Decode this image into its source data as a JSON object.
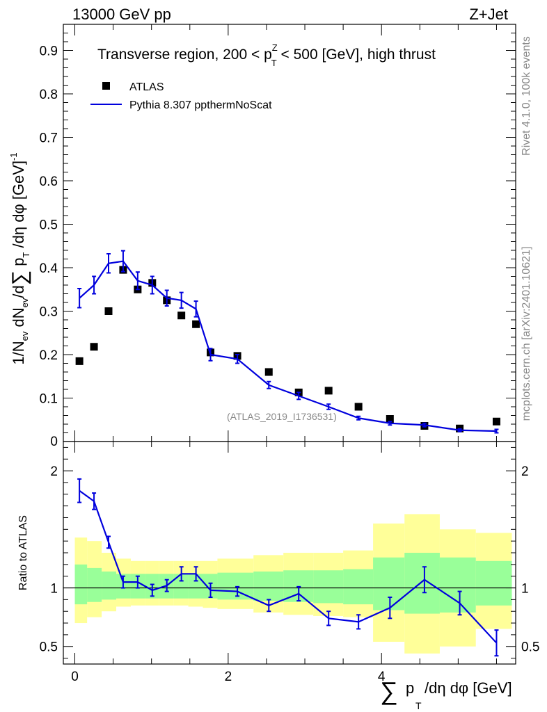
{
  "header": {
    "left": "13000 GeV pp",
    "right": "Z+Jet"
  },
  "side_labels": {
    "rivet": "Rivet 4.1.0,  100k events",
    "mcplots": "mcplots.cern.ch [arXiv:2401.10621]"
  },
  "chart_data": [
    {
      "type": "scatter",
      "title": "Transverse region, 200 < p_T^Z < 500 [GeV], high thrust",
      "title_parts": {
        "pre": "Transverse region, 200 < p",
        "sub": "T",
        "sup": "Z",
        "post": " < 500 [GeV], high thrust"
      },
      "ylabel": "1/N_ev dN_ev/d∑ p_T /dη dφ  [GeV]^-1",
      "watermark": "(ATLAS_2019_I1736531)",
      "xlim": [
        -0.15,
        5.75
      ],
      "ylim": [
        0,
        0.96
      ],
      "yticks": [
        0.1,
        0.2,
        0.3,
        0.4,
        0.5,
        0.6,
        0.7,
        0.8,
        0.9
      ],
      "ytick_labels": [
        "0.1",
        "0.2",
        "0.3",
        "0.4",
        "0.5",
        "0.6",
        "0.7",
        "0.8",
        "0.9"
      ],
      "ybottom_label": "0",
      "legend": [
        {
          "name": "ATLAS",
          "marker": "square",
          "color": "#000000"
        },
        {
          "name": "Pythia 8.307 pptherm NoScat",
          "label": "Pythia 8.307 ppthermNoScat",
          "marker": "line",
          "color": "#0000dd"
        }
      ],
      "series": [
        {
          "name": "ATLAS",
          "x": [
            0.06,
            0.25,
            0.44,
            0.63,
            0.82,
            1.01,
            1.2,
            1.39,
            1.58,
            1.77,
            2.12,
            2.53,
            2.92,
            3.31,
            3.7,
            4.11,
            4.56,
            5.02,
            5.5
          ],
          "y": [
            0.185,
            0.218,
            0.3,
            0.395,
            0.35,
            0.365,
            0.325,
            0.29,
            0.27,
            0.205,
            0.197,
            0.16,
            0.113,
            0.117,
            0.08,
            0.052,
            0.036,
            0.03,
            0.046
          ]
        },
        {
          "name": "Pythia 8.307 ppthermNoScat",
          "bins": [
            [
              0,
              0.16
            ],
            [
              0.16,
              0.35
            ],
            [
              0.35,
              0.54
            ],
            [
              0.54,
              0.73
            ],
            [
              0.73,
              0.92
            ],
            [
              0.92,
              1.1
            ],
            [
              1.1,
              1.29
            ],
            [
              1.29,
              1.48
            ],
            [
              1.48,
              1.67
            ],
            [
              1.67,
              1.86
            ],
            [
              1.86,
              2.33
            ],
            [
              2.33,
              2.72
            ],
            [
              2.72,
              3.11
            ],
            [
              3.11,
              3.5
            ],
            [
              3.5,
              3.89
            ],
            [
              3.89,
              4.3
            ],
            [
              4.3,
              4.76
            ],
            [
              4.76,
              5.23
            ],
            [
              5.23,
              5.7
            ]
          ],
          "x": [
            0.06,
            0.25,
            0.44,
            0.63,
            0.82,
            1.01,
            1.2,
            1.39,
            1.58,
            1.77,
            2.12,
            2.53,
            2.92,
            3.31,
            3.7,
            4.11,
            4.56,
            5.02,
            5.5
          ],
          "y": [
            0.33,
            0.36,
            0.41,
            0.415,
            0.37,
            0.36,
            0.33,
            0.325,
            0.305,
            0.2,
            0.19,
            0.13,
            0.105,
            0.08,
            0.054,
            0.042,
            0.038,
            0.026,
            0.024
          ],
          "err": [
            0.022,
            0.02,
            0.022,
            0.024,
            0.02,
            0.02,
            0.018,
            0.018,
            0.018,
            0.014,
            0.01,
            0.008,
            0.008,
            0.006,
            0.004,
            0.004,
            0.004,
            0.003,
            0.004
          ]
        }
      ]
    },
    {
      "type": "line",
      "ylabel": "Ratio to ATLAS",
      "xlabel": "∑ p_T /dη dφ [GeV]",
      "xlabel_parts": {
        "sum": "∑",
        "p": "p",
        "sub": "T",
        "rest": "/dη dφ [GeV]"
      },
      "xlim": [
        -0.15,
        5.75
      ],
      "ylim": [
        0.35,
        2.25
      ],
      "xticks": [
        0,
        2,
        4
      ],
      "xtick_labels": [
        "0",
        "2",
        "4"
      ],
      "yticks": [
        0.5,
        1,
        2
      ],
      "ytick_labels": [
        "0.5",
        "1",
        "2"
      ],
      "reference": 1,
      "bands": {
        "bins": [
          [
            0,
            0.16
          ],
          [
            0.16,
            0.35
          ],
          [
            0.35,
            0.54
          ],
          [
            0.54,
            0.73
          ],
          [
            0.73,
            0.92
          ],
          [
            0.92,
            1.1
          ],
          [
            1.1,
            1.29
          ],
          [
            1.29,
            1.48
          ],
          [
            1.48,
            1.67
          ],
          [
            1.67,
            1.86
          ],
          [
            1.86,
            2.33
          ],
          [
            2.33,
            2.72
          ],
          [
            2.72,
            3.11
          ],
          [
            3.11,
            3.5
          ],
          [
            3.5,
            3.89
          ],
          [
            3.89,
            4.3
          ],
          [
            4.3,
            4.76
          ],
          [
            4.76,
            5.23
          ],
          [
            5.23,
            5.7
          ]
        ],
        "inner_lo": [
          0.86,
          0.88,
          0.9,
          0.91,
          0.91,
          0.91,
          0.91,
          0.91,
          0.91,
          0.91,
          0.9,
          0.89,
          0.88,
          0.87,
          0.86,
          0.81,
          0.78,
          0.79,
          0.85
        ],
        "inner_hi": [
          1.2,
          1.17,
          1.14,
          1.12,
          1.12,
          1.12,
          1.12,
          1.12,
          1.12,
          1.12,
          1.13,
          1.14,
          1.15,
          1.15,
          1.16,
          1.26,
          1.3,
          1.26,
          1.23
        ],
        "outer_lo": [
          0.7,
          0.75,
          0.8,
          0.84,
          0.85,
          0.85,
          0.85,
          0.85,
          0.84,
          0.83,
          0.82,
          0.79,
          0.77,
          0.76,
          0.75,
          0.54,
          0.44,
          0.5,
          0.65
        ],
        "outer_hi": [
          1.43,
          1.4,
          1.3,
          1.25,
          1.23,
          1.23,
          1.23,
          1.23,
          1.23,
          1.23,
          1.25,
          1.28,
          1.3,
          1.3,
          1.32,
          1.55,
          1.63,
          1.5,
          1.47
        ]
      },
      "series": [
        {
          "name": "Pythia 8.307 ppthermNoScat / ATLAS",
          "x": [
            0.06,
            0.25,
            0.44,
            0.63,
            0.82,
            1.01,
            1.2,
            1.39,
            1.58,
            1.77,
            2.12,
            2.53,
            2.92,
            3.31,
            3.7,
            4.11,
            4.56,
            5.02,
            5.5
          ],
          "y": [
            1.83,
            1.74,
            1.39,
            1.05,
            1.05,
            0.98,
            1.02,
            1.12,
            1.12,
            0.98,
            0.97,
            0.85,
            0.95,
            0.74,
            0.71,
            0.83,
            1.07,
            0.87,
            0.53
          ],
          "err": [
            0.1,
            0.07,
            0.05,
            0.05,
            0.05,
            0.05,
            0.05,
            0.06,
            0.06,
            0.06,
            0.04,
            0.05,
            0.06,
            0.06,
            0.06,
            0.09,
            0.11,
            0.1,
            0.11
          ]
        }
      ]
    }
  ]
}
